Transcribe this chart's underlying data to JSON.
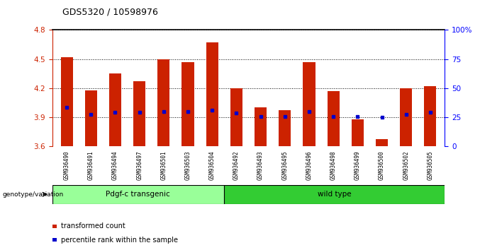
{
  "title": "GDS5320 / 10598976",
  "categories": [
    "GSM936490",
    "GSM936491",
    "GSM936494",
    "GSM936497",
    "GSM936501",
    "GSM936503",
    "GSM936504",
    "GSM936492",
    "GSM936493",
    "GSM936495",
    "GSM936496",
    "GSM936498",
    "GSM936499",
    "GSM936500",
    "GSM936502",
    "GSM936505"
  ],
  "bar_tops": [
    4.52,
    4.18,
    4.35,
    4.27,
    4.5,
    4.47,
    4.67,
    4.2,
    4.0,
    3.97,
    4.47,
    4.17,
    3.88,
    3.67,
    4.2,
    4.22
  ],
  "blue_dots": [
    4.0,
    3.93,
    3.95,
    3.95,
    3.96,
    3.96,
    3.97,
    3.94,
    3.91,
    3.91,
    3.96,
    3.91,
    3.91,
    3.9,
    3.93,
    3.95
  ],
  "bar_bottom": 3.6,
  "ylim": [
    3.6,
    4.8
  ],
  "yticks_left": [
    3.6,
    3.9,
    4.2,
    4.5,
    4.8
  ],
  "bar_color": "#CC2200",
  "dot_color": "#0000CC",
  "group1_label": "Pdgf-c transgenic",
  "group2_label": "wild type",
  "group1_color": "#99FF99",
  "group2_color": "#33CC33",
  "group1_count": 7,
  "group2_count": 9,
  "legend_labels": [
    "transformed count",
    "percentile rank within the sample"
  ],
  "genotype_label": "genotype/variation",
  "ylabel_left_color": "#CC2200",
  "ylabel_right_color": "#0000FF",
  "right_ytick_labels": [
    "0",
    "25",
    "50",
    "75",
    "100%"
  ],
  "xtick_bg_color": "#CCCCCC",
  "spine_color": "#000000"
}
